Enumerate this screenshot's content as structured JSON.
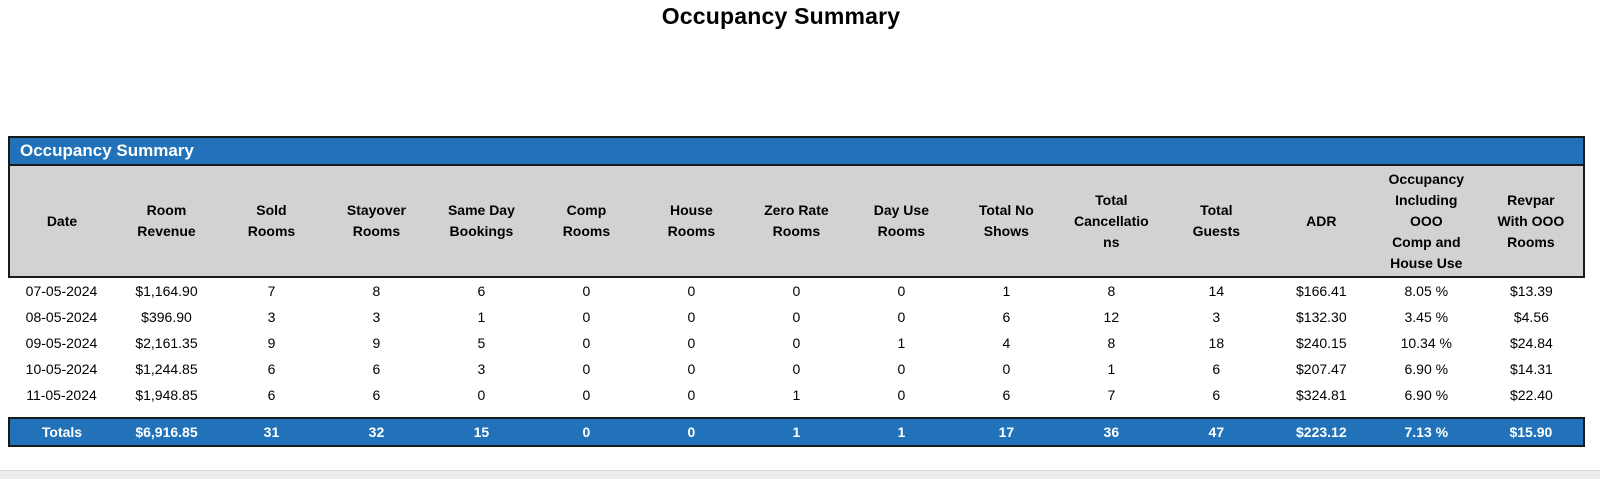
{
  "page_title": "Occupancy Summary",
  "section_header": "Occupancy Summary",
  "colors": {
    "accent_blue": "#2272B9",
    "header_gray": "#D2D2D2",
    "border_black": "#1a1a1a",
    "bottom_strip_gray": "#EDEDED"
  },
  "table": {
    "columns": [
      {
        "id": "date",
        "lines": [
          "Date"
        ]
      },
      {
        "id": "room-revenue",
        "lines": [
          "Room",
          "Revenue"
        ]
      },
      {
        "id": "sold-rooms",
        "lines": [
          "Sold",
          "Rooms"
        ]
      },
      {
        "id": "stayover-rooms",
        "lines": [
          "Stayover",
          "Rooms"
        ]
      },
      {
        "id": "same-day-bookings",
        "lines": [
          "Same Day",
          "Bookings"
        ]
      },
      {
        "id": "comp-rooms",
        "lines": [
          "Comp",
          "Rooms"
        ]
      },
      {
        "id": "house-rooms",
        "lines": [
          "House",
          "Rooms"
        ]
      },
      {
        "id": "zero-rate-rooms",
        "lines": [
          "Zero Rate",
          "Rooms"
        ]
      },
      {
        "id": "day-use-rooms",
        "lines": [
          "Day Use",
          "Rooms"
        ]
      },
      {
        "id": "total-no-shows",
        "lines": [
          "Total No",
          "Shows"
        ]
      },
      {
        "id": "total-cancellations",
        "lines": [
          "Total",
          "Cancellatio",
          "ns"
        ]
      },
      {
        "id": "total-guests",
        "lines": [
          "Total",
          "Guests"
        ]
      },
      {
        "id": "adr",
        "lines": [
          "ADR"
        ]
      },
      {
        "id": "occupancy-incl-ooo",
        "lines": [
          "Occupancy",
          "Including",
          "OOO",
          "Comp and",
          "House Use"
        ]
      },
      {
        "id": "revpar-with-ooo",
        "lines": [
          "Revpar",
          "With OOO",
          "Rooms"
        ]
      }
    ],
    "rows": [
      [
        "07-05-2024",
        "$1,164.90",
        "7",
        "8",
        "6",
        "0",
        "0",
        "0",
        "0",
        "1",
        "8",
        "14",
        "$166.41",
        "8.05 %",
        "$13.39"
      ],
      [
        "08-05-2024",
        "$396.90",
        "3",
        "3",
        "1",
        "0",
        "0",
        "0",
        "0",
        "6",
        "12",
        "3",
        "$132.30",
        "3.45 %",
        "$4.56"
      ],
      [
        "09-05-2024",
        "$2,161.35",
        "9",
        "9",
        "5",
        "0",
        "0",
        "0",
        "1",
        "4",
        "8",
        "18",
        "$240.15",
        "10.34 %",
        "$24.84"
      ],
      [
        "10-05-2024",
        "$1,244.85",
        "6",
        "6",
        "3",
        "0",
        "0",
        "0",
        "0",
        "0",
        "1",
        "6",
        "$207.47",
        "6.90 %",
        "$14.31"
      ],
      [
        "11-05-2024",
        "$1,948.85",
        "6",
        "6",
        "0",
        "0",
        "0",
        "1",
        "0",
        "6",
        "7",
        "6",
        "$324.81",
        "6.90 %",
        "$22.40"
      ]
    ],
    "totals": [
      "Totals",
      "$6,916.85",
      "31",
      "32",
      "15",
      "0",
      "0",
      "1",
      "1",
      "17",
      "36",
      "47",
      "$223.12",
      "7.13 %",
      "$15.90"
    ]
  }
}
